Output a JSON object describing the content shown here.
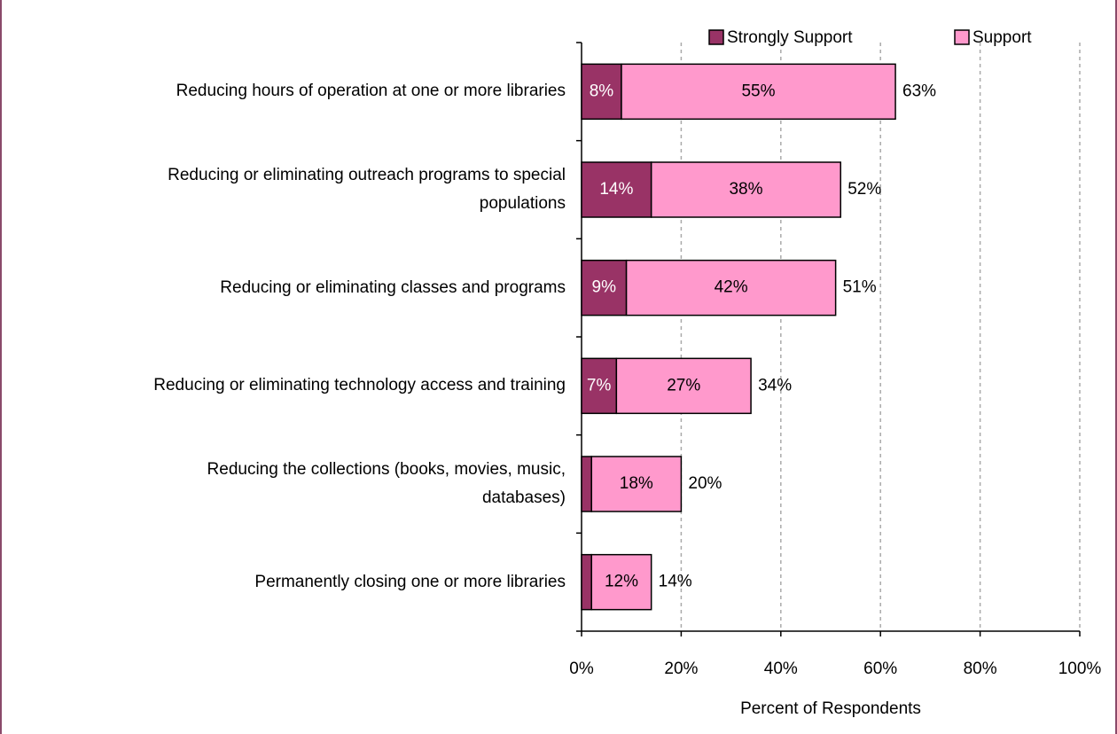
{
  "chart_data": {
    "type": "stacked-bar-horizontal",
    "categories": [
      "Reducing hours of operation at one or more libraries",
      "Reducing or eliminating outreach programs to special\npopulations",
      "Reducing or eliminating classes and programs",
      "Reducing or eliminating technology access and training",
      "Reducing the collections (books, movies, music,\ndatabases)",
      "Permanently closing one or more libraries"
    ],
    "series": [
      {
        "name": "Strongly Support",
        "color": "#993366",
        "values": [
          8,
          14,
          9,
          7,
          2,
          2
        ],
        "value_labels": [
          "8%",
          "14%",
          "9%",
          "7%",
          null,
          null
        ]
      },
      {
        "name": "Support",
        "color": "#ff99cc",
        "values": [
          55,
          38,
          42,
          27,
          18,
          12
        ],
        "value_labels": [
          "55%",
          "38%",
          "42%",
          "27%",
          "18%",
          "12%"
        ]
      }
    ],
    "totals": [
      63,
      52,
      51,
      34,
      20,
      14
    ],
    "total_labels": [
      "63%",
      "52%",
      "51%",
      "34%",
      "20%",
      "14%"
    ],
    "xlabel": "Percent of Respondents",
    "xlim": [
      0,
      100
    ],
    "xticks": [
      {
        "value": 0,
        "label": "0%"
      },
      {
        "value": 20,
        "label": "20%"
      },
      {
        "value": 40,
        "label": "40%"
      },
      {
        "value": 60,
        "label": "60%"
      },
      {
        "value": 80,
        "label": "80%"
      },
      {
        "value": 100,
        "label": "100%"
      }
    ],
    "grid": true,
    "legend": "top"
  }
}
